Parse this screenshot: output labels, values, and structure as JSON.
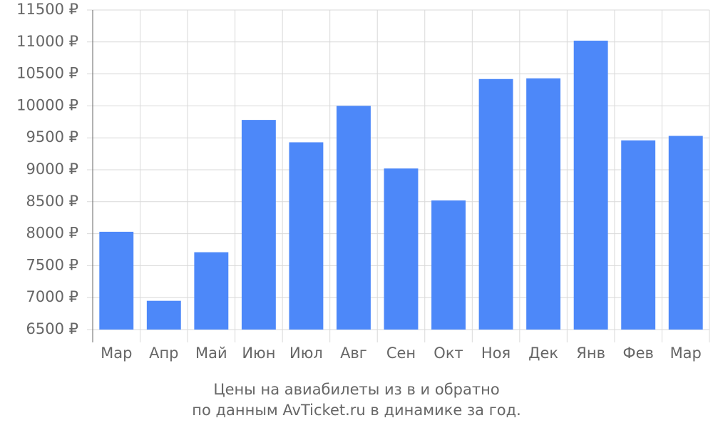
{
  "chart_data": {
    "type": "bar",
    "title": [
      "Цены на авиабилеты из  в  и обратно",
      "по данным AvTicket.ru в динамике за год."
    ],
    "categories": [
      "Мар",
      "Апр",
      "Май",
      "Июн",
      "Июл",
      "Авг",
      "Сен",
      "Окт",
      "Ноя",
      "Дек",
      "Янв",
      "Фев",
      "Мар"
    ],
    "values": [
      8030,
      6950,
      7710,
      9780,
      9430,
      10000,
      9020,
      8520,
      10420,
      10430,
      11020,
      9460,
      9530
    ],
    "color": "#4d88f9",
    "ylim": [
      6500,
      11500
    ],
    "yticks": [
      {
        "value": 6500,
        "label": "6500 ₽"
      },
      {
        "value": 7000,
        "label": "7000 ₽"
      },
      {
        "value": 7500,
        "label": "7500 ₽"
      },
      {
        "value": 8000,
        "label": "8000 ₽"
      },
      {
        "value": 8500,
        "label": "8500 ₽"
      },
      {
        "value": 9000,
        "label": "9000 ₽"
      },
      {
        "value": 9500,
        "label": "9500 ₽"
      },
      {
        "value": 10000,
        "label": "10000 ₽"
      },
      {
        "value": 10500,
        "label": "10500 ₽"
      },
      {
        "value": 11000,
        "label": "11000 ₽"
      },
      {
        "value": 11500,
        "label": "11500 ₽"
      }
    ],
    "grid": true
  }
}
